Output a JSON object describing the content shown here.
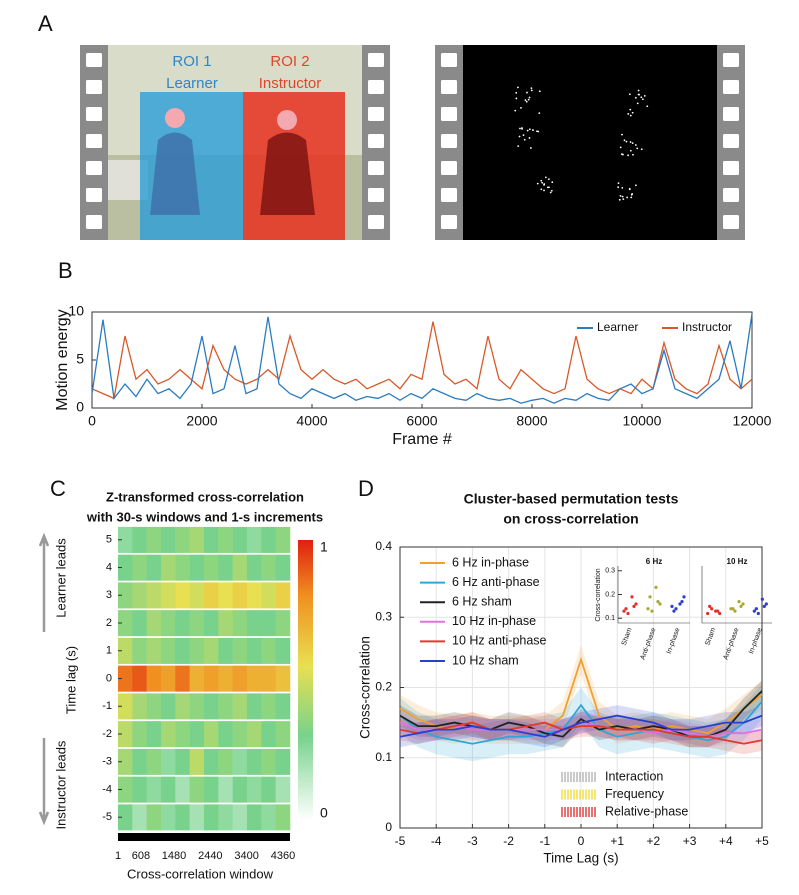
{
  "panel_labels": [
    "A",
    "B",
    "C",
    "D"
  ],
  "panel_a": {
    "roi1_label": "ROI 1",
    "roi1_name": "Learner",
    "roi2_label": "ROI 2",
    "roi2_name": "Instructor"
  },
  "chart_data": [
    {
      "type": "line",
      "xlabel": "Frame #",
      "ylabel": "Motion energy",
      "xlim": [
        0,
        12000
      ],
      "xticks": [
        0,
        2000,
        4000,
        6000,
        8000,
        10000,
        12000
      ],
      "ylim": [
        0,
        10
      ],
      "yticks": [
        0,
        5,
        10
      ],
      "legend": "upper right",
      "grid": false,
      "x": [
        0,
        200,
        400,
        600,
        800,
        1000,
        1200,
        1400,
        1600,
        1800,
        2000,
        2200,
        2400,
        2600,
        2800,
        3000,
        3200,
        3400,
        3600,
        3800,
        4000,
        4200,
        4400,
        4600,
        4800,
        5000,
        5200,
        5400,
        5600,
        5800,
        6000,
        6200,
        6400,
        6600,
        6800,
        7000,
        7200,
        7400,
        7600,
        7800,
        8000,
        8200,
        8400,
        8600,
        8800,
        9000,
        9200,
        9400,
        9600,
        9800,
        10000,
        10200,
        10400,
        10600,
        10800,
        11000,
        11200,
        11400,
        11600,
        11800,
        12000
      ],
      "series": [
        {
          "name": "Learner",
          "color": "#2b7bbf",
          "values": [
            1.5,
            9.2,
            1,
            2.5,
            1.2,
            3,
            1.5,
            2,
            1,
            2.5,
            7.5,
            1.5,
            2,
            6.5,
            1.5,
            2,
            9.5,
            2.5,
            1.5,
            1,
            2,
            1.5,
            1,
            1.5,
            0.8,
            1.2,
            1,
            1.5,
            0.8,
            1.5,
            1,
            2,
            1.5,
            1,
            0.8,
            1.5,
            1,
            0.8,
            1,
            0.5,
            0.8,
            1,
            0.5,
            1,
            0.8,
            1.5,
            1,
            0.8,
            2,
            2.5,
            1.5,
            2,
            6,
            2,
            1.5,
            1,
            2,
            3,
            7,
            2,
            9.8
          ]
        },
        {
          "name": "Instructor",
          "color": "#d9582a",
          "values": [
            2,
            1.5,
            1,
            7.5,
            3,
            4,
            2.5,
            3,
            4,
            3,
            2,
            6.5,
            4,
            3,
            2.5,
            3,
            4,
            3,
            7.5,
            4,
            3,
            4,
            3,
            2.5,
            3,
            2,
            2.5,
            3,
            2,
            3.5,
            3,
            9,
            3.5,
            2.5,
            3,
            2,
            7.5,
            3,
            2,
            4,
            3,
            2,
            1.5,
            2,
            7.5,
            3,
            2,
            1.5,
            2,
            1.5,
            3,
            2,
            6.8,
            3,
            2,
            1.5,
            2.5,
            6.5,
            3,
            2,
            3
          ]
        }
      ]
    },
    {
      "type": "heatmap",
      "title": [
        "Z-transformed cross-correlation",
        "with 30-s windows and 1-s increments"
      ],
      "xlabel": "Cross-correlation window",
      "ylabel": "Time lag (s)",
      "annotations": [
        "Learner leads",
        "Instructor leads"
      ],
      "xlim": [
        1,
        4545
      ],
      "xticks": [
        1,
        608,
        1480,
        2440,
        3400,
        4360
      ],
      "ylim": [
        -5.1,
        5.1
      ],
      "yticks": [
        5,
        4,
        3,
        2,
        1,
        0,
        -1,
        -2,
        -3,
        -4,
        -5
      ],
      "colorbar": {
        "lim": [
          0,
          1
        ],
        "ticks": [
          1,
          0
        ]
      },
      "x": [
        190,
        569,
        947,
        1326,
        1705,
        2083,
        2462,
        2841,
        3219,
        3598,
        3977,
        4355
      ],
      "y": [
        -5,
        -4,
        -3,
        -2,
        -1,
        0,
        1,
        2,
        3,
        4,
        5
      ],
      "z": [
        [
          0.3,
          0.2,
          0.35,
          0.25,
          0.3,
          0.2,
          0.3,
          0.25,
          0.2,
          0.3,
          0.25,
          0.35
        ],
        [
          0.35,
          0.3,
          0.25,
          0.3,
          0.2,
          0.35,
          0.3,
          0.2,
          0.3,
          0.25,
          0.3,
          0.2
        ],
        [
          0.4,
          0.3,
          0.35,
          0.25,
          0.3,
          0.45,
          0.3,
          0.35,
          0.25,
          0.3,
          0.35,
          0.3
        ],
        [
          0.45,
          0.35,
          0.3,
          0.4,
          0.35,
          0.3,
          0.4,
          0.3,
          0.35,
          0.4,
          0.3,
          0.35
        ],
        [
          0.5,
          0.4,
          0.35,
          0.3,
          0.4,
          0.35,
          0.3,
          0.35,
          0.4,
          0.3,
          0.35,
          0.3
        ],
        [
          0.85,
          0.9,
          0.8,
          0.75,
          0.85,
          0.7,
          0.75,
          0.7,
          0.75,
          0.7,
          0.7,
          0.65
        ],
        [
          0.45,
          0.35,
          0.4,
          0.35,
          0.3,
          0.35,
          0.4,
          0.3,
          0.35,
          0.3,
          0.35,
          0.3
        ],
        [
          0.35,
          0.3,
          0.4,
          0.35,
          0.3,
          0.35,
          0.3,
          0.4,
          0.35,
          0.3,
          0.3,
          0.35
        ],
        [
          0.35,
          0.4,
          0.45,
          0.5,
          0.55,
          0.5,
          0.6,
          0.55,
          0.6,
          0.55,
          0.5,
          0.6
        ],
        [
          0.3,
          0.35,
          0.3,
          0.4,
          0.35,
          0.3,
          0.35,
          0.3,
          0.4,
          0.3,
          0.35,
          0.3
        ],
        [
          0.25,
          0.3,
          0.35,
          0.3,
          0.35,
          0.4,
          0.3,
          0.35,
          0.3,
          0.25,
          0.3,
          0.35
        ]
      ]
    },
    {
      "type": "line",
      "title": [
        "Cluster-based permutation tests",
        "on cross-correlation"
      ],
      "xlabel": "Time Lag (s)",
      "ylabel": "Cross-correlation",
      "legend": "upper left",
      "grid": true,
      "xlim": [
        -5,
        5
      ],
      "xticks": [
        -5,
        -4,
        -3,
        -2,
        -1,
        0,
        {
          "value": 1,
          "label": "+1"
        },
        {
          "value": 2,
          "label": "+2"
        },
        {
          "value": 3,
          "label": "+3"
        },
        {
          "value": 4,
          "label": "+4"
        },
        {
          "value": 5,
          "label": "+5"
        }
      ],
      "ylim": [
        0,
        0.4
      ],
      "yticks": [
        0,
        0.1,
        0.2,
        0.3,
        0.4
      ],
      "x": [
        -5,
        -4.5,
        -4,
        -3.5,
        -3,
        -2.5,
        -2,
        -1.5,
        -1,
        -0.5,
        0,
        0.5,
        1,
        1.5,
        2,
        2.5,
        3,
        3.5,
        4,
        4.5,
        5
      ],
      "series": [
        {
          "name": "6 Hz in-phase",
          "color": "#f0a030",
          "error": 0.02,
          "values": [
            0.17,
            0.155,
            0.145,
            0.14,
            0.145,
            0.14,
            0.14,
            0.14,
            0.14,
            0.16,
            0.24,
            0.16,
            0.14,
            0.145,
            0.14,
            0.145,
            0.14,
            0.135,
            0.15,
            0.17,
            0.19
          ]
        },
        {
          "name": "6 Hz anti-phase",
          "color": "#2ea6d6",
          "error": 0.025,
          "values": [
            0.16,
            0.14,
            0.13,
            0.125,
            0.12,
            0.125,
            0.13,
            0.13,
            0.135,
            0.14,
            0.175,
            0.14,
            0.13,
            0.135,
            0.14,
            0.135,
            0.13,
            0.125,
            0.13,
            0.15,
            0.18
          ]
        },
        {
          "name": "6 Hz sham",
          "color": "#222222",
          "error": 0.015,
          "values": [
            0.16,
            0.145,
            0.145,
            0.15,
            0.145,
            0.14,
            0.15,
            0.145,
            0.135,
            0.13,
            0.155,
            0.14,
            0.145,
            0.14,
            0.145,
            0.14,
            0.13,
            0.13,
            0.14,
            0.17,
            0.195
          ]
        },
        {
          "name": "10 Hz in-phase",
          "color": "#e070e0",
          "error": 0.015,
          "values": [
            0.15,
            0.14,
            0.14,
            0.145,
            0.14,
            0.14,
            0.14,
            0.14,
            0.14,
            0.14,
            0.15,
            0.145,
            0.14,
            0.14,
            0.135,
            0.14,
            0.135,
            0.13,
            0.135,
            0.135,
            0.14
          ]
        },
        {
          "name": "10 Hz anti-phase",
          "color": "#e03a2a",
          "error": 0.015,
          "values": [
            0.14,
            0.135,
            0.14,
            0.145,
            0.15,
            0.14,
            0.14,
            0.145,
            0.15,
            0.14,
            0.145,
            0.145,
            0.14,
            0.14,
            0.14,
            0.135,
            0.13,
            0.13,
            0.125,
            0.12,
            0.125
          ]
        },
        {
          "name": "10 Hz sham",
          "color": "#2a3fd0",
          "error": 0.015,
          "values": [
            0.13,
            0.135,
            0.14,
            0.14,
            0.145,
            0.14,
            0.14,
            0.135,
            0.13,
            0.14,
            0.15,
            0.155,
            0.16,
            0.155,
            0.15,
            0.14,
            0.14,
            0.145,
            0.15,
            0.15,
            0.16
          ]
        }
      ],
      "clusters": [
        {
          "name": "Interaction",
          "color": "#bdbdbd"
        },
        {
          "name": "Frequency",
          "color": "#f5e04a"
        },
        {
          "name": "Relative-phase",
          "color": "#e05050"
        }
      ]
    },
    {
      "type": "scatter",
      "title": "6 Hz",
      "ylabel": "Cross-correlation",
      "ylim": [
        0.08,
        0.32
      ],
      "yticks": [
        0.1,
        0.2,
        0.3
      ],
      "categories": [
        "Sham",
        "Anti-phase",
        "In-phase"
      ],
      "colors": [
        "#e0302a",
        "#a8a830",
        "#2a3fd0"
      ],
      "values": [
        [
          0.13,
          0.15,
          0.12,
          0.16,
          0.14,
          0.19
        ],
        [
          0.14,
          0.17,
          0.13,
          0.16,
          0.19,
          0.23
        ],
        [
          0.15,
          0.17,
          0.14,
          0.19,
          0.13,
          0.16
        ]
      ]
    },
    {
      "type": "scatter",
      "title": "10 Hz",
      "ylim": [
        0.08,
        0.32
      ],
      "categories": [
        "Sham",
        "Anti-phase",
        "In-phase"
      ],
      "colors": [
        "#e0302a",
        "#a8a830",
        "#2a3fd0"
      ],
      "values": [
        [
          0.12,
          0.13,
          0.14,
          0.12,
          0.15,
          0.13
        ],
        [
          0.14,
          0.15,
          0.13,
          0.16,
          0.14,
          0.17
        ],
        [
          0.13,
          0.15,
          0.12,
          0.16,
          0.14,
          0.18
        ]
      ]
    }
  ]
}
